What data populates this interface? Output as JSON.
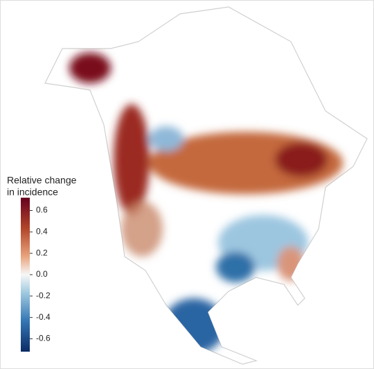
{
  "legend": {
    "title_lines": [
      "Relative change",
      "in incidence"
    ],
    "lim": [
      -0.72,
      0.72
    ],
    "ticks": [
      0.6,
      0.4,
      0.2,
      {
        "value": 0,
        "label": "0.0"
      },
      -0.2,
      -0.4,
      -0.6
    ]
  }
}
